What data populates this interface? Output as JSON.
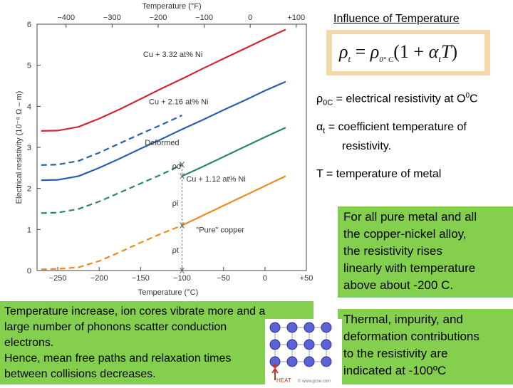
{
  "chart_data": {
    "type": "line",
    "title": "",
    "xlabel": "Temperature (°C)",
    "ylabel": "Electrical resistivity (10⁻⁸ Ω – m)",
    "top_xlabel": "Temperature (°F)",
    "xlim": [
      -275,
      50
    ],
    "ylim": [
      0,
      6
    ],
    "x_ticks": [
      "−250",
      "−200",
      "−150",
      "−100",
      "−50",
      "0",
      "+50"
    ],
    "y_ticks": [
      "0",
      "1",
      "2",
      "3",
      "4",
      "5",
      "6"
    ],
    "top_ticks": [
      "−400",
      "−300",
      "−200",
      "−100",
      "0",
      "+100"
    ],
    "series": [
      {
        "name": "Cu + 3.32 at% Ni",
        "color": "#d0282f",
        "style": "solid",
        "x": [
          -270,
          -250,
          -225,
          -200,
          -175,
          -150,
          -125,
          -100,
          -75,
          -50,
          -25,
          0,
          25
        ],
        "y": [
          3.4,
          3.41,
          3.5,
          3.7,
          3.93,
          4.18,
          4.43,
          4.67,
          4.92,
          5.16,
          5.4,
          5.64,
          5.87
        ]
      },
      {
        "name": "Cu + 2.16 at% Ni",
        "color": "#2b5fad",
        "style": "solid",
        "x": [
          -270,
          -250,
          -225,
          -200,
          -175,
          -150,
          -125,
          -100,
          -75,
          -50,
          -25,
          0,
          25
        ],
        "y": [
          2.2,
          2.21,
          2.3,
          2.5,
          2.73,
          2.97,
          3.2,
          3.44,
          3.67,
          3.91,
          4.14,
          4.38,
          4.6
        ]
      },
      {
        "name": "Deformed",
        "color": "#2b5fad",
        "style": "dashed",
        "x": [
          -270,
          -250,
          -225,
          -200,
          -175,
          -150,
          -125,
          -100
        ],
        "y": [
          2.57,
          2.58,
          2.67,
          2.87,
          3.1,
          3.33,
          3.55,
          3.78
        ]
      },
      {
        "name": "Cu + 1.12 at% Ni",
        "color": "#2a8a5a",
        "style": "solid",
        "x": [
          -100,
          -75,
          -50,
          -25,
          0,
          25
        ],
        "y": [
          2.3,
          2.53,
          2.77,
          3.01,
          3.25,
          3.48
        ]
      },
      {
        "name": "",
        "color": "#2a8a5a",
        "style": "dashed",
        "x": [
          -270,
          -250,
          -225,
          -200,
          -175,
          -150,
          -125,
          -100
        ],
        "y": [
          1.4,
          1.41,
          1.5,
          1.68,
          1.9,
          2.12,
          2.34,
          2.58
        ]
      },
      {
        "name": "\"Pure\" copper",
        "color": "#f08a24",
        "style": "solid",
        "x": [
          -100,
          -75,
          -50,
          -25,
          0,
          25
        ],
        "y": [
          1.1,
          1.34,
          1.58,
          1.82,
          2.06,
          2.3
        ]
      },
      {
        "name": "",
        "color": "#f08a24",
        "style": "dashed",
        "x": [
          -270,
          -250,
          -225,
          -200,
          -175,
          -150,
          -125,
          -100
        ],
        "y": [
          0.03,
          0.04,
          0.08,
          0.23,
          0.45,
          0.68,
          0.9,
          1.1
        ]
      }
    ],
    "annotations": [
      {
        "text": "Cu + 3.32 at% Ni",
        "x": -147,
        "y": 5.2
      },
      {
        "text": "Cu + 2.16 at% Ni",
        "x": -140,
        "y": 4.05
      },
      {
        "text": "Deformed",
        "x": -145,
        "y": 3.05
      },
      {
        "text": "Cu + 1.12 at% Ni",
        "x": -95,
        "y": 2.17
      },
      {
        "text": "\"Pure\" copper",
        "x": -83,
        "y": 0.93
      },
      {
        "text": "ρd",
        "x": -112,
        "y": 2.48
      },
      {
        "text": "ρi",
        "x": -112,
        "y": 1.58
      },
      {
        "text": "ρt",
        "x": -112,
        "y": 0.43
      }
    ],
    "contributions_x": -100,
    "contributions_y": [
      0,
      1.1,
      2.3,
      2.58
    ]
  },
  "heading": "Influence of Temperature",
  "formula": {
    "rho": "ρ",
    "t": "t",
    "eq": " = ",
    "rho0": "ρ",
    "sub0": "0° C",
    "paren": "(1 + ",
    "alpha": "α",
    "alpha_sub": "t",
    "T": "T",
    "close": ")"
  },
  "definitions": {
    "rho0_sym": "ρ",
    "rho0_sub": "0C",
    "rho0_text": " = electrical resistivity at O",
    "rho0_sup": "0",
    "rho0_tail": "C",
    "alpha_sym": "α",
    "alpha_sub": "t",
    "alpha_text": " = coefficient temperature of",
    "alpha_text2": "resistivity.",
    "T_text": "T = temperature of metal"
  },
  "right_box_1": [
    "For all pure metal and all",
    "the copper-nickel alloy,",
    "the resistivity rises",
    "linearly with temperature",
    "above about -200 C."
  ],
  "right_box_2": [
    "Thermal, impurity, and",
    "deformation contributions",
    "to the resistivity are",
    "indicated at -100ºC"
  ],
  "bottom_left": [
    "Temperature increase, ion cores vibrate more and a",
    "large number of phonons scatter conduction",
    "electrons.",
    "Hence, mean free paths and relaxation times",
    "between collisions decreases."
  ],
  "lattice_heat_label": "HEAT",
  "lattice_credit": "© www.gcse.com",
  "colors": {
    "green_box": "#84d04e",
    "formula_bg": "#f4d9a8",
    "atom": "#5b63d6",
    "heat": "#c0392b"
  }
}
